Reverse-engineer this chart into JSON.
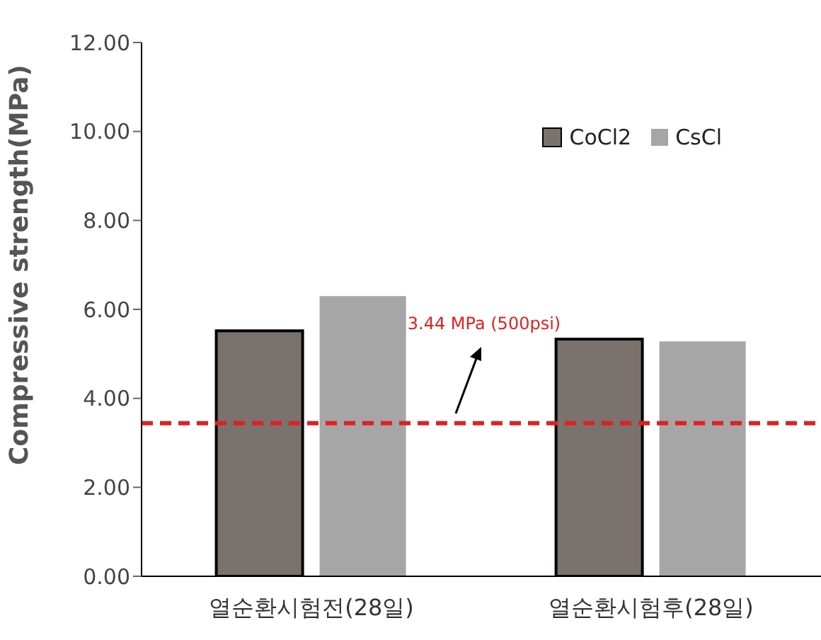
{
  "chart_data": {
    "type": "bar",
    "ylabel": "Compressive strength(MPa)",
    "categories": [
      "열순환시험전(28일)",
      "열순환시험후(28일)"
    ],
    "series": [
      {
        "name": "CoCl2",
        "color": "#7a726c",
        "values": [
          5.52,
          5.33
        ]
      },
      {
        "name": "CsCl",
        "color": "#a6a6a6",
        "values": [
          6.3,
          5.28
        ]
      }
    ],
    "ylim": [
      0,
      12
    ],
    "yticks": [
      {
        "value": 0,
        "label": "0.00"
      },
      {
        "value": 2,
        "label": "2.00"
      },
      {
        "value": 4,
        "label": "4.00"
      },
      {
        "value": 6,
        "label": "6.00"
      },
      {
        "value": 8,
        "label": "8.00"
      },
      {
        "value": 10,
        "label": "10.00"
      },
      {
        "value": 12,
        "label": "12.00"
      }
    ],
    "ref_lines": [
      {
        "axis": "y",
        "value": 3.44,
        "label": "3.44  MPa (500psi)",
        "color": "#e02020",
        "line_style": "dashed"
      }
    ],
    "grid": false,
    "legend": "top right"
  }
}
